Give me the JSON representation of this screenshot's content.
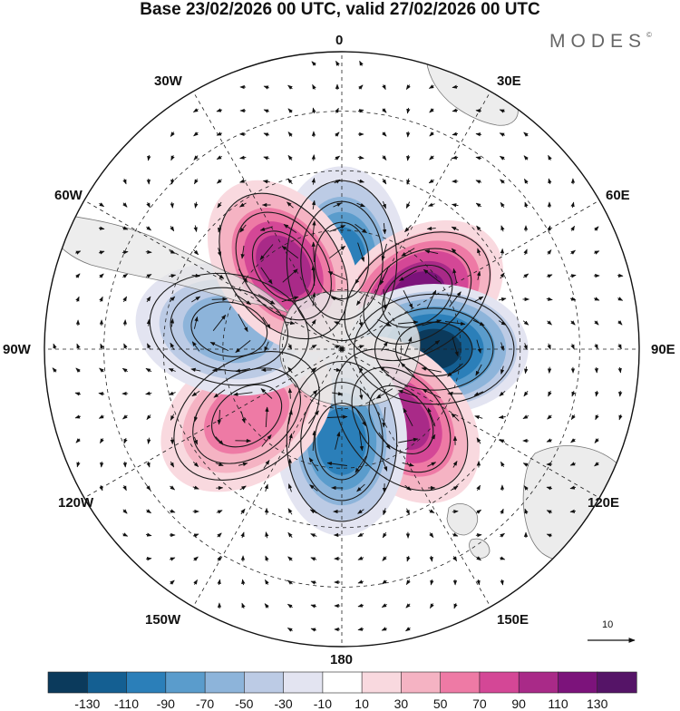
{
  "title": "Base 23/02/2026 00 UTC, valid 27/02/2026 00 UTC",
  "brand": "MODES",
  "brand_mark": "©",
  "longitude_labels": {
    "top": "0",
    "top_left": "30W",
    "top_right": "30E",
    "upper_left": "60W",
    "upper_right": "60E",
    "left": "90W",
    "right": "90E",
    "lower_left": "120W",
    "lower_right": "120E",
    "bottom_left": "150W",
    "bottom_right": "150E",
    "bottom": "180"
  },
  "reference_vector_label": "10",
  "colorbar": {
    "labels": [
      "-130",
      "-110",
      "-90",
      "-70",
      "-50",
      "-30",
      "-10",
      "10",
      "30",
      "50",
      "70",
      "90",
      "110",
      "130"
    ],
    "colors": [
      "#0b3a5c",
      "#145f92",
      "#2b7fb9",
      "#5a9ccc",
      "#8db4da",
      "#bccbe5",
      "#e3e4f1",
      "#ffffff",
      "#f9d9df",
      "#f5b3c3",
      "#ee7aa5",
      "#d44796",
      "#a92a88",
      "#7c137b",
      "#551467"
    ]
  },
  "anomaly_centers": [
    {
      "lon": 0,
      "colat": 0.48,
      "value": -95
    },
    {
      "lon": 55,
      "colat": 0.5,
      "value": 125
    },
    {
      "lon": 90,
      "colat": 0.5,
      "value": -130
    },
    {
      "lon": 140,
      "colat": 0.5,
      "value": 95
    },
    {
      "lon": 180,
      "colat": 0.5,
      "value": -90
    },
    {
      "lon": -125,
      "colat": 0.63,
      "value": 55
    },
    {
      "lon": -80,
      "colat": 0.62,
      "value": -60
    },
    {
      "lon": -35,
      "colat": 0.55,
      "value": 95
    }
  ]
}
